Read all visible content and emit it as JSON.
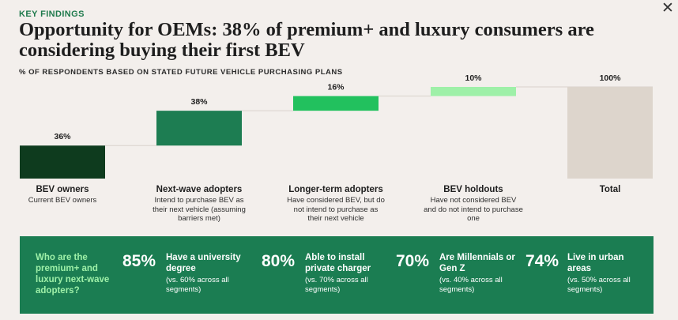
{
  "header": {
    "kicker": "KEY FINDINGS",
    "title": "Opportunity for OEMs: 38% of premium+ and luxury consumers are considering buying their first BEV",
    "subtitle": "% OF RESPONDENTS BASED ON STATED FUTURE VEHICLE PURCHASING PLANS",
    "close_label": "✕"
  },
  "chart_data": {
    "type": "waterfall",
    "title": "% of respondents based on stated future vehicle purchasing plans",
    "unit": "%",
    "ylim": [
      0,
      100
    ],
    "categories": [
      {
        "name": "BEV owners",
        "desc": "Current BEV owners",
        "value": 36,
        "label": "36%",
        "color": "#0e3b1e",
        "base": 0
      },
      {
        "name": "Next-wave adopters",
        "desc": "Intend to purchase BEV as their next vehicle (assuming barriers met)",
        "value": 38,
        "label": "38%",
        "color": "#1d7d52",
        "base": 36
      },
      {
        "name": "Longer-term adopters",
        "desc": "Have considered BEV, but do not intend to purchase as their next vehicle",
        "value": 16,
        "label": "16%",
        "color": "#22c15e",
        "base": 74
      },
      {
        "name": "BEV holdouts",
        "desc": "Have not considered BEV and do not intend to purchase one",
        "value": 10,
        "label": "10%",
        "color": "#9ef0a8",
        "base": 90
      },
      {
        "name": "Total",
        "desc": "",
        "value": 100,
        "label": "100%",
        "color": "#ddd5cc",
        "base": 0
      }
    ]
  },
  "panel": {
    "question": "Who are the premium+ and luxury next-wave adopters?",
    "stats": [
      {
        "pct": "85%",
        "label": "Have a university degree",
        "note": "(vs. 60% across all segments)"
      },
      {
        "pct": "80%",
        "label": "Able to install private charger",
        "note": "(vs. 70% across all segments)"
      },
      {
        "pct": "70%",
        "label": "Are Millennials or Gen Z",
        "note": "(vs. 40% across all segments)"
      },
      {
        "pct": "74%",
        "label": "Live in urban areas",
        "note": "(vs. 50% across all segments)"
      }
    ]
  }
}
